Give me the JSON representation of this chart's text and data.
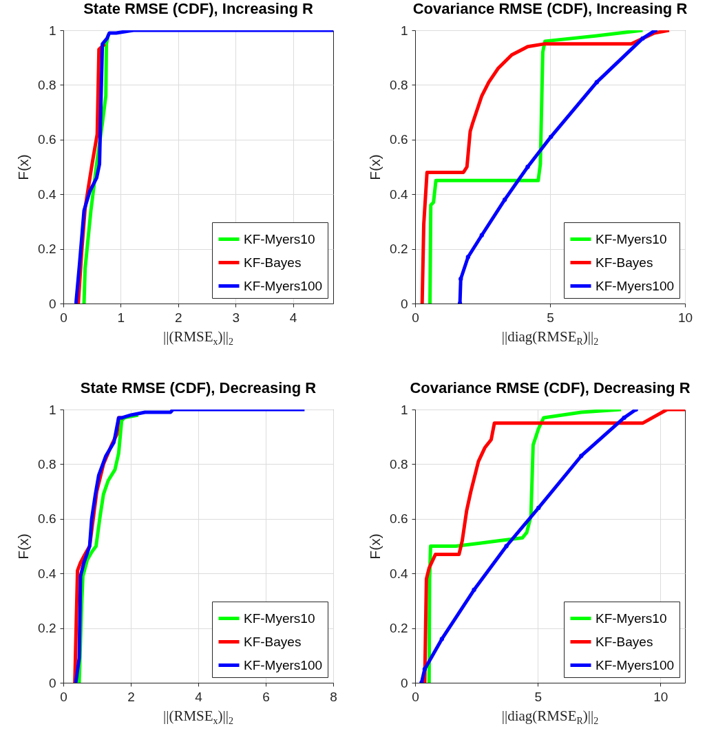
{
  "chart_data": [
    {
      "type": "line",
      "title": "State RMSE (CDF), Increasing R",
      "xlabel": "||(RMSE$_{x}$)||$_{2}$",
      "ylabel": "F(x)",
      "xlim": [
        0,
        4.7
      ],
      "xticks": [
        0,
        1,
        2,
        3,
        4
      ],
      "ylim": [
        0,
        1
      ],
      "yticks": [
        0,
        0.2,
        0.4,
        0.6,
        0.8,
        1
      ],
      "grid": true,
      "legend": "bottom right",
      "series": [
        {
          "name": "KF-Myers10",
          "color": "#00ff00",
          "x": [
            0.36,
            0.38,
            0.48,
            0.58,
            0.68,
            0.74,
            0.75,
            0.78
          ],
          "values": [
            0,
            0.13,
            0.34,
            0.51,
            0.66,
            0.76,
            0.95,
            0.98
          ]
        },
        {
          "name": "KF-Bayes",
          "color": "#ff0000",
          "x": [
            0.26,
            0.32,
            0.38,
            0.5,
            0.59,
            0.62,
            0.72
          ],
          "values": [
            0,
            0.19,
            0.35,
            0.51,
            0.62,
            0.93,
            0.95
          ]
        },
        {
          "name": "KF-Myers100",
          "color": "#0000ff",
          "x": [
            0.22,
            0.28,
            0.36,
            0.46,
            0.58,
            0.63,
            0.66,
            0.68,
            0.76,
            0.8,
            0.92,
            1.22,
            4.7
          ],
          "values": [
            0,
            0.14,
            0.34,
            0.41,
            0.46,
            0.51,
            0.78,
            0.95,
            0.97,
            0.99,
            0.99,
            1.0,
            1.0
          ]
        }
      ]
    },
    {
      "type": "line",
      "title": "Covariance RMSE (CDF), Increasing R",
      "xlabel": "||diag(RMSE$_{R}$)||$_{2}$",
      "ylabel": "F(x)",
      "xlim": [
        0,
        10
      ],
      "xticks": [
        0,
        5,
        10
      ],
      "ylim": [
        0,
        1
      ],
      "yticks": [
        0,
        0.2,
        0.4,
        0.6,
        0.8,
        1
      ],
      "grid": true,
      "legend": "bottom right",
      "series": [
        {
          "name": "KF-Myers10",
          "color": "#00ff00",
          "x": [
            0.55,
            0.58,
            0.68,
            0.77,
            4.56,
            4.64,
            4.73,
            4.81,
            6.73,
            8.43
          ],
          "values": [
            0,
            0.36,
            0.37,
            0.45,
            0.45,
            0.51,
            0.92,
            0.96,
            0.98,
            1.0
          ]
        },
        {
          "name": "KF-Bayes",
          "color": "#ff0000",
          "x": [
            0.26,
            0.32,
            0.44,
            1.79,
            1.92,
            2.04,
            2.13,
            2.47,
            2.73,
            3.07,
            3.58,
            4.17,
            4.77,
            8.01,
            8.86,
            9.41
          ],
          "values": [
            0,
            0.29,
            0.48,
            0.48,
            0.5,
            0.63,
            0.66,
            0.76,
            0.81,
            0.86,
            0.91,
            0.94,
            0.95,
            0.95,
            0.99,
            1.0
          ]
        },
        {
          "name": "KF-Myers100",
          "color": "#0000ff",
          "marker": "circle",
          "x": [
            1.66,
            1.69,
            1.96,
            2.47,
            3.32,
            4.17,
            5.03,
            6.73,
            8.43,
            8.9
          ],
          "values": [
            0,
            0.09,
            0.17,
            0.25,
            0.38,
            0.5,
            0.61,
            0.81,
            0.97,
            1.0
          ]
        }
      ]
    },
    {
      "type": "line",
      "title": "State RMSE (CDF), Decreasing R",
      "xlabel": "||(RMSE$_{x}$)||$_{2}$",
      "ylabel": "F(x)",
      "xlim": [
        0,
        8
      ],
      "xticks": [
        0,
        2,
        4,
        6,
        8
      ],
      "ylim": [
        0,
        1
      ],
      "yticks": [
        0,
        0.2,
        0.4,
        0.6,
        0.8,
        1
      ],
      "grid": true,
      "legend": "bottom right",
      "series": [
        {
          "name": "KF-Myers10",
          "color": "#00ff00",
          "x": [
            0.47,
            0.54,
            0.58,
            0.71,
            0.85,
            0.97,
            1.09,
            1.19,
            1.33,
            1.53,
            1.64,
            1.73,
            1.81,
            2.22
          ],
          "values": [
            0,
            0.28,
            0.39,
            0.45,
            0.48,
            0.5,
            0.61,
            0.69,
            0.74,
            0.78,
            0.84,
            0.96,
            0.97,
            0.98
          ]
        },
        {
          "name": "KF-Bayes",
          "color": "#ff0000",
          "x": [
            0.34,
            0.42,
            0.51,
            0.64,
            0.78,
            0.99,
            1.19,
            1.43,
            1.59,
            1.64,
            1.77
          ],
          "values": [
            0,
            0.41,
            0.44,
            0.47,
            0.5,
            0.7,
            0.8,
            0.87,
            0.91,
            0.97,
            0.97
          ]
        },
        {
          "name": "KF-Myers100",
          "color": "#0000ff",
          "x": [
            0.37,
            0.47,
            0.51,
            0.61,
            0.78,
            0.84,
            0.95,
            1.05,
            1.26,
            1.5,
            1.64,
            1.74,
            2.01,
            2.42,
            3.18,
            3.25,
            7.15
          ],
          "values": [
            0,
            0.09,
            0.39,
            0.44,
            0.5,
            0.6,
            0.69,
            0.76,
            0.83,
            0.88,
            0.97,
            0.97,
            0.98,
            0.99,
            0.99,
            1.0,
            1.0
          ]
        }
      ]
    },
    {
      "type": "line",
      "title": "Covariance RMSE (CDF), Decreasing R",
      "xlabel": "||diag(RMSE$_{R}$)||$_{2}$",
      "ylabel": "F(x)",
      "xlim": [
        0,
        11
      ],
      "xticks": [
        0,
        5,
        10
      ],
      "ylim": [
        0,
        1
      ],
      "yticks": [
        0,
        0.2,
        0.4,
        0.6,
        0.8,
        1
      ],
      "grid": true,
      "legend": "bottom right",
      "series": [
        {
          "name": "KF-Myers10",
          "color": "#00ff00",
          "x": [
            0.57,
            0.59,
            0.63,
            1.66,
            2.58,
            3.45,
            4.37,
            4.55,
            4.72,
            4.81,
            5.03,
            5.24,
            6.77,
            8.39
          ],
          "values": [
            0,
            0.38,
            0.5,
            0.5,
            0.51,
            0.52,
            0.53,
            0.55,
            0.61,
            0.87,
            0.93,
            0.97,
            0.99,
            1.0
          ]
        },
        {
          "name": "KF-Bayes",
          "color": "#ff0000",
          "x": [
            0.39,
            0.46,
            0.57,
            0.83,
            1.79,
            1.92,
            2.1,
            2.27,
            2.58,
            2.84,
            3.1,
            3.23,
            9.27,
            10.27,
            11
          ],
          "values": [
            0,
            0.38,
            0.42,
            0.47,
            0.47,
            0.52,
            0.63,
            0.7,
            0.81,
            0.86,
            0.89,
            0.95,
            0.95,
            1.0,
            1.0
          ]
        },
        {
          "name": "KF-Myers100",
          "color": "#0000ff",
          "marker": "circle",
          "x": [
            0.26,
            0.39,
            1.09,
            2.4,
            3.72,
            5.03,
            6.77,
            8.52,
            9.0
          ],
          "values": [
            0,
            0.05,
            0.16,
            0.34,
            0.5,
            0.64,
            0.83,
            0.97,
            1.0
          ]
        }
      ]
    }
  ]
}
